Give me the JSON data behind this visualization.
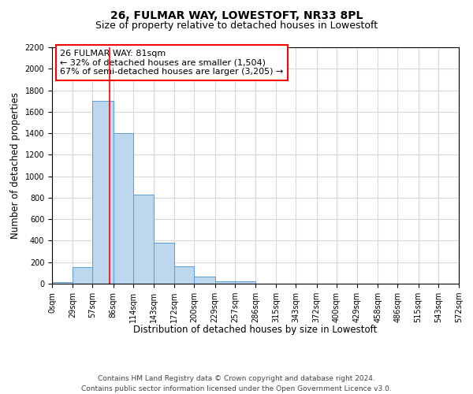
{
  "title": "26, FULMAR WAY, LOWESTOFT, NR33 8PL",
  "subtitle": "Size of property relative to detached houses in Lowestoft",
  "xlabel": "Distribution of detached houses by size in Lowestoft",
  "ylabel": "Number of detached properties",
  "bar_edges": [
    0,
    29,
    57,
    86,
    114,
    143,
    172,
    200,
    229,
    257,
    286,
    315,
    343,
    372,
    400,
    429,
    458,
    486,
    515,
    543,
    572
  ],
  "bar_heights": [
    15,
    155,
    1700,
    1400,
    830,
    385,
    160,
    65,
    25,
    25,
    0,
    0,
    0,
    0,
    0,
    0,
    0,
    0,
    0,
    0
  ],
  "bar_color": "#bdd7ee",
  "bar_edge_color": "#5b9bd5",
  "vline_x": 81,
  "vline_color": "red",
  "annotation_title": "26 FULMAR WAY: 81sqm",
  "annotation_line1": "← 32% of detached houses are smaller (1,504)",
  "annotation_line2": "67% of semi-detached houses are larger (3,205) →",
  "annotation_box_color": "white",
  "annotation_box_edge": "red",
  "ylim": [
    0,
    2200
  ],
  "yticks": [
    0,
    200,
    400,
    600,
    800,
    1000,
    1200,
    1400,
    1600,
    1800,
    2000,
    2200
  ],
  "xtick_labels": [
    "0sqm",
    "29sqm",
    "57sqm",
    "86sqm",
    "114sqm",
    "143sqm",
    "172sqm",
    "200sqm",
    "229sqm",
    "257sqm",
    "286sqm",
    "315sqm",
    "343sqm",
    "372sqm",
    "400sqm",
    "429sqm",
    "458sqm",
    "486sqm",
    "515sqm",
    "543sqm",
    "572sqm"
  ],
  "grid_color": "#d9d9d9",
  "footer_line1": "Contains HM Land Registry data © Crown copyright and database right 2024.",
  "footer_line2": "Contains public sector information licensed under the Open Government Licence v3.0.",
  "title_fontsize": 10,
  "subtitle_fontsize": 9,
  "axis_label_fontsize": 8.5,
  "tick_fontsize": 7,
  "annotation_fontsize": 8,
  "footer_fontsize": 6.5
}
